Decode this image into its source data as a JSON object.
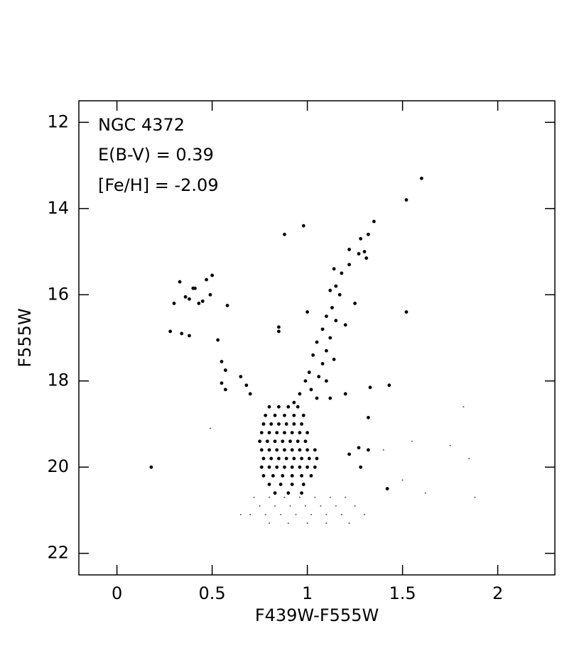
{
  "chart_data": {
    "type": "scatter",
    "annotations": [
      "NGC 4372",
      "E(B-V) = 0.39",
      "[Fe/H] = -2.09"
    ],
    "x_label": "F439W-F555W",
    "y_label": "F555W",
    "xlim": [
      -0.2,
      2.3
    ],
    "xticks": [
      0,
      0.5,
      1,
      1.5,
      2
    ],
    "ylim": [
      11.5,
      22.5
    ],
    "yticks": [
      12,
      14,
      16,
      18,
      20,
      22
    ],
    "y_inverted": true,
    "series": [
      {
        "color": "#000000",
        "size": 2.4,
        "x": [
          0.3,
          0.33,
          0.36,
          0.38,
          0.4,
          0.41,
          0.43,
          0.45,
          0.47,
          0.5,
          0.49,
          0.58,
          0.28,
          0.34,
          0.38,
          0.53,
          0.55,
          0.57,
          0.55,
          0.57,
          0.65,
          0.68,
          0.7,
          1.6,
          1.52,
          1.52,
          1.35,
          1.32,
          1.28,
          1.3,
          1.27,
          1.31,
          1.22,
          1.22,
          1.18,
          1.14,
          1.15,
          1.12,
          1.17,
          1.13,
          1.1,
          1.15,
          1.08,
          1.2,
          1.12,
          1.05,
          1.1,
          1.03,
          1.08,
          1.14,
          1.01,
          1.06,
          0.99,
          1.1,
          1.02,
          0.96,
          1.05,
          0.93,
          1.12,
          1.2,
          0.88,
          0.98,
          1.0,
          0.85,
          0.85,
          1.25,
          1.33,
          1.43,
          1.32,
          1.27,
          1.32,
          1.28,
          1.22,
          0.18,
          1.42,
          0.8,
          0.85,
          0.9,
          0.95,
          0.78,
          0.83,
          0.88,
          0.93,
          0.98,
          0.77,
          0.81,
          0.85,
          0.89,
          0.93,
          0.97,
          0.76,
          0.8,
          0.84,
          0.88,
          0.92,
          0.96,
          1.0,
          0.75,
          0.79,
          0.83,
          0.87,
          0.91,
          0.95,
          0.99,
          0.76,
          0.8,
          0.84,
          0.88,
          0.92,
          0.96,
          1.0,
          1.04,
          0.77,
          0.81,
          0.85,
          0.89,
          0.93,
          0.97,
          1.01,
          1.05,
          0.76,
          0.8,
          0.84,
          0.88,
          0.92,
          0.96,
          1.0,
          1.04,
          0.77,
          0.82,
          0.87,
          0.92,
          0.97,
          1.02,
          0.8,
          0.86,
          0.92,
          0.98,
          0.83,
          0.9,
          0.97
        ],
        "y": [
          16.2,
          15.7,
          16.05,
          16.1,
          15.85,
          15.85,
          16.2,
          16.15,
          15.65,
          15.55,
          16.0,
          16.25,
          16.85,
          16.9,
          16.95,
          17.05,
          17.55,
          17.75,
          18.05,
          18.2,
          17.9,
          18.1,
          18.3,
          13.3,
          13.8,
          16.4,
          14.3,
          14.6,
          14.7,
          15.0,
          15.05,
          15.15,
          14.95,
          15.3,
          15.5,
          15.4,
          15.8,
          15.9,
          16.0,
          16.3,
          16.5,
          16.6,
          16.8,
          16.7,
          17.0,
          17.1,
          17.3,
          17.4,
          17.6,
          17.5,
          17.8,
          17.9,
          18.0,
          18.0,
          18.2,
          18.3,
          18.4,
          18.5,
          18.4,
          18.3,
          14.6,
          14.4,
          16.4,
          16.75,
          16.85,
          16.2,
          18.15,
          18.1,
          18.85,
          19.55,
          19.6,
          20.0,
          19.7,
          20.0,
          20.5,
          18.6,
          18.6,
          18.6,
          18.6,
          18.8,
          18.8,
          18.8,
          18.8,
          18.8,
          19.0,
          19.0,
          19.0,
          19.0,
          19.0,
          19.0,
          19.2,
          19.2,
          19.2,
          19.2,
          19.2,
          19.2,
          19.2,
          19.4,
          19.4,
          19.4,
          19.4,
          19.4,
          19.4,
          19.4,
          19.6,
          19.6,
          19.6,
          19.6,
          19.6,
          19.6,
          19.6,
          19.6,
          19.8,
          19.8,
          19.8,
          19.8,
          19.8,
          19.8,
          19.8,
          19.8,
          20.0,
          20.0,
          20.0,
          20.0,
          20.0,
          20.0,
          20.0,
          20.0,
          20.2,
          20.2,
          20.2,
          20.2,
          20.2,
          20.2,
          20.4,
          20.4,
          20.4,
          20.4,
          20.6,
          20.6,
          20.6
        ]
      },
      {
        "color": "#555555",
        "size": 1,
        "x": [
          0.72,
          0.8,
          0.88,
          0.96,
          1.04,
          1.12,
          1.2,
          0.75,
          0.83,
          0.91,
          0.99,
          1.07,
          1.15,
          1.25,
          0.7,
          0.78,
          0.86,
          0.94,
          1.02,
          1.1,
          1.18,
          1.3,
          0.8,
          0.9,
          1.0,
          1.1,
          1.22,
          1.75,
          1.85,
          1.55,
          1.62,
          1.88,
          1.5,
          0.49,
          0.65,
          1.4,
          1.82
        ],
        "y": [
          20.7,
          20.7,
          20.7,
          20.7,
          20.7,
          20.7,
          20.7,
          20.9,
          20.9,
          20.9,
          20.9,
          20.9,
          20.9,
          20.9,
          21.1,
          21.1,
          21.1,
          21.1,
          21.1,
          21.1,
          21.1,
          21.1,
          21.3,
          21.3,
          21.3,
          21.3,
          21.3,
          19.5,
          19.8,
          19.4,
          20.6,
          20.7,
          20.3,
          19.1,
          21.1,
          19.6,
          18.6
        ]
      }
    ]
  }
}
